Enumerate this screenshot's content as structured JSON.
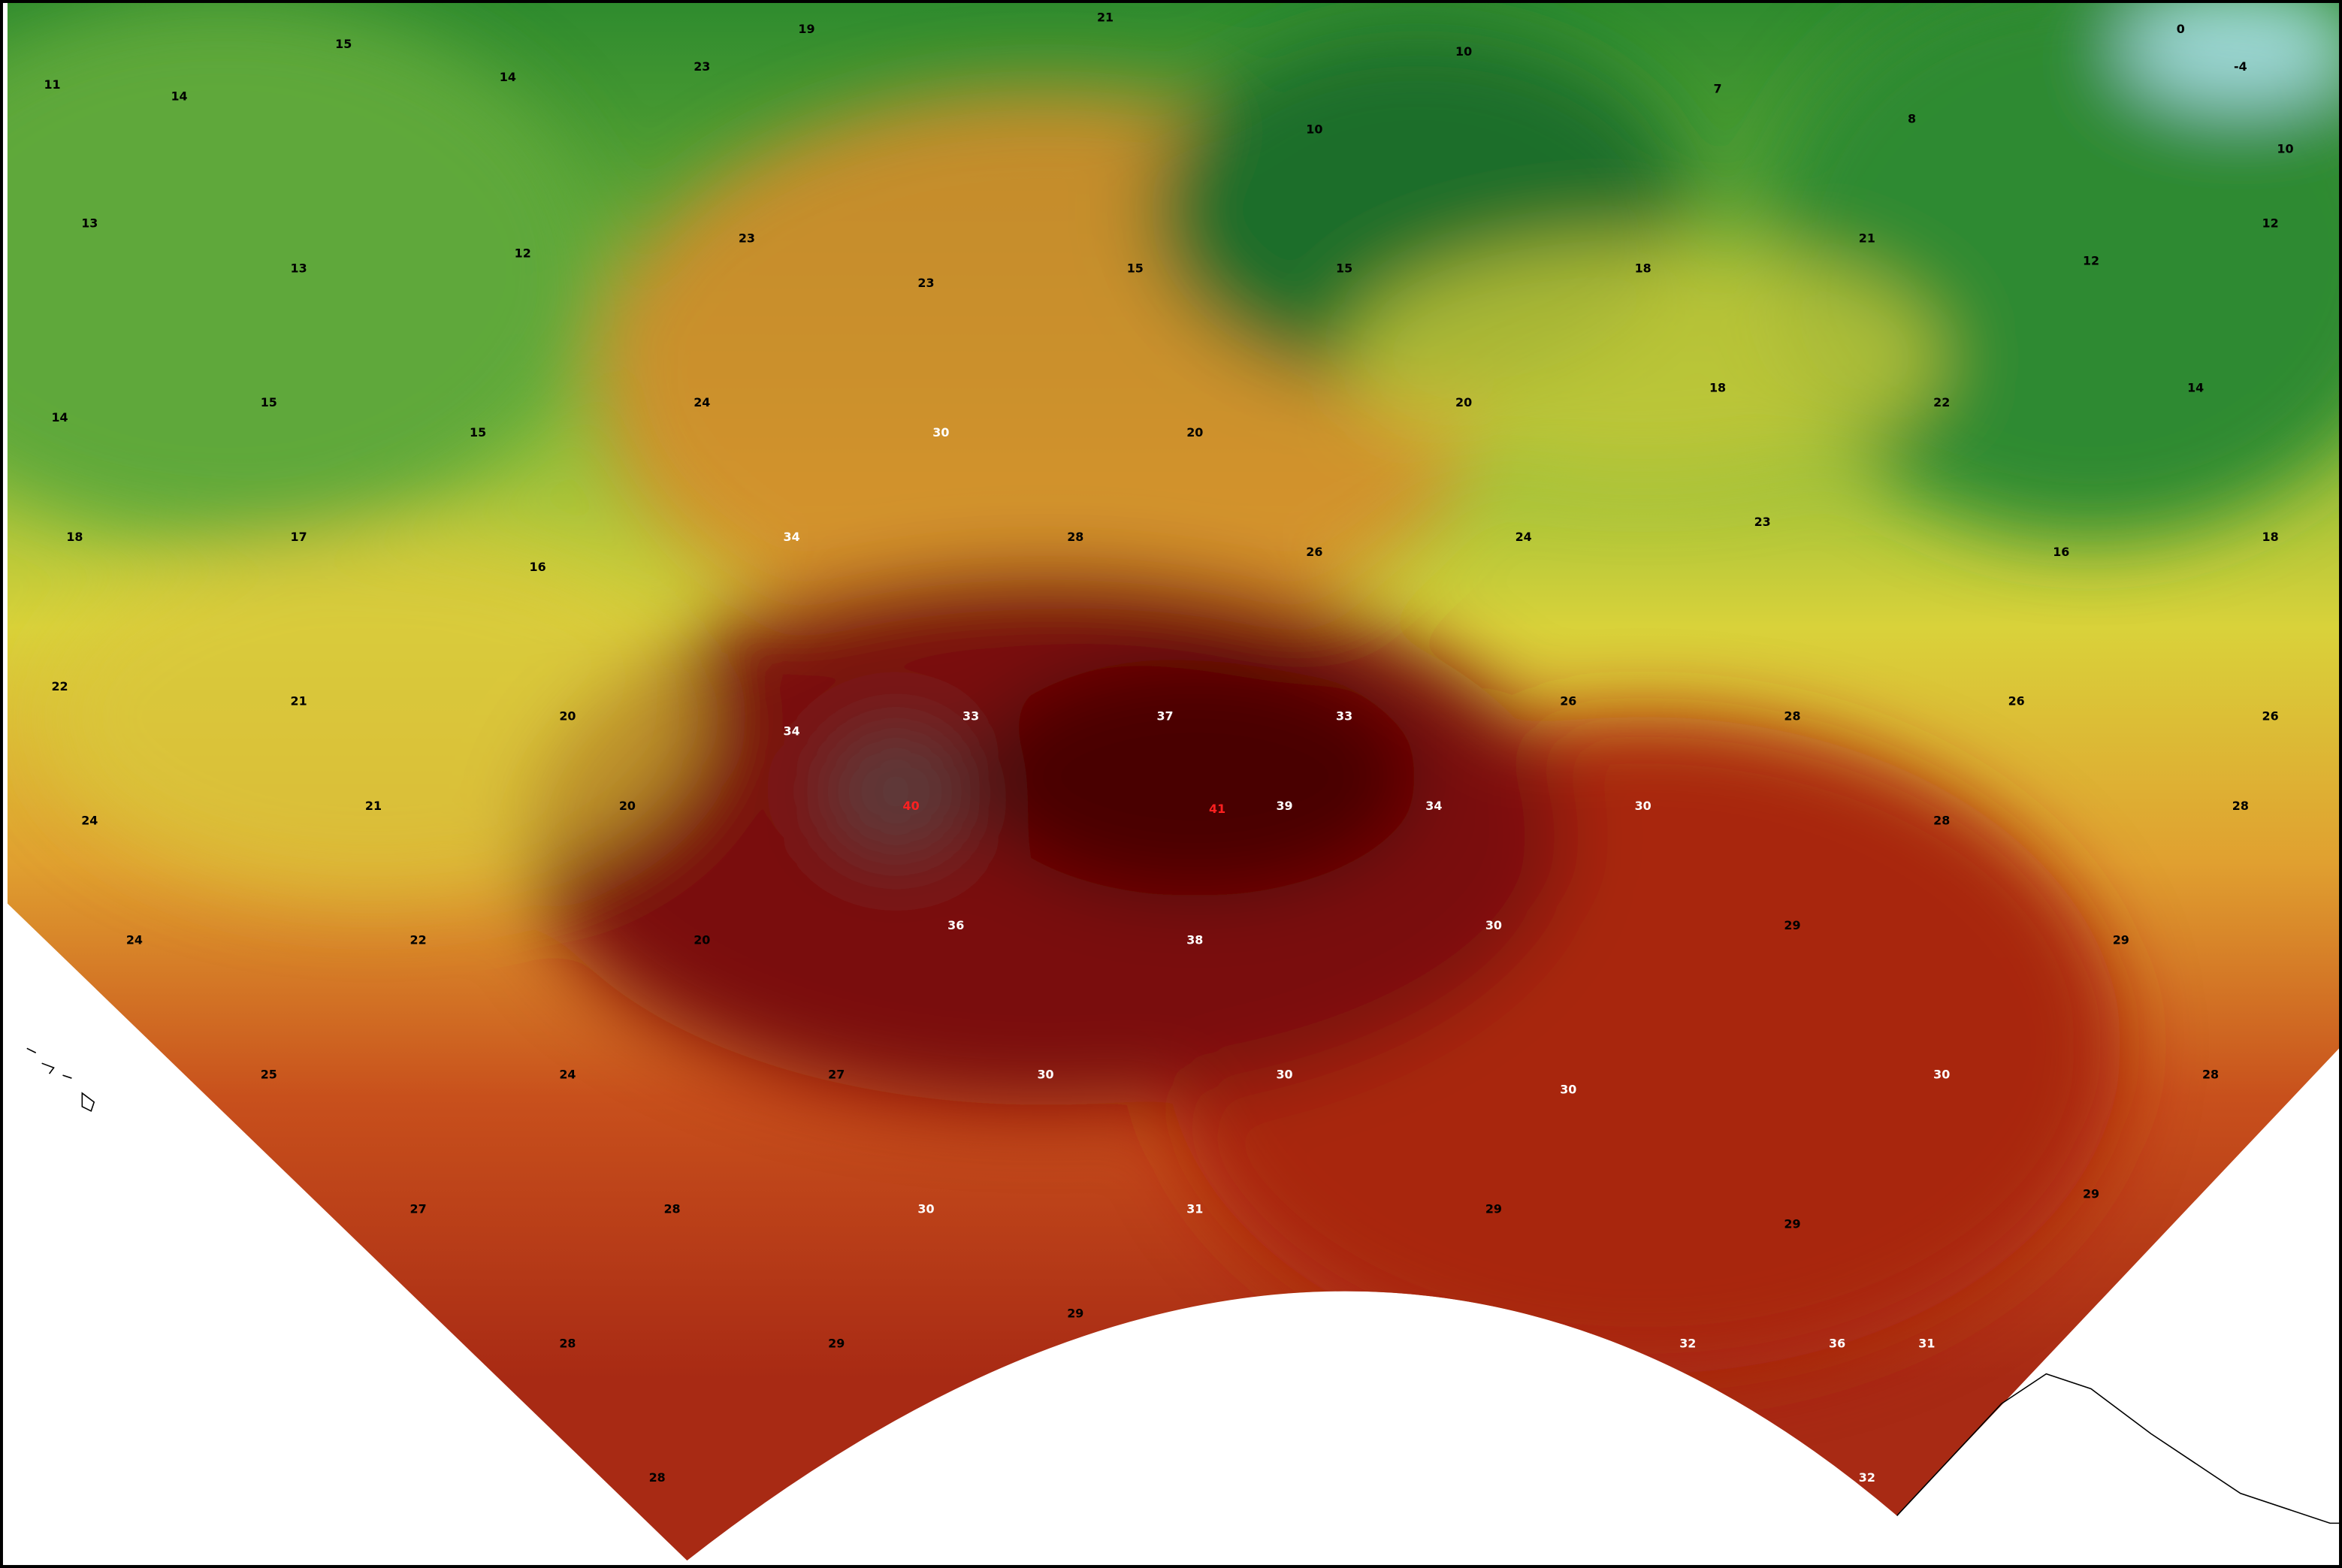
{
  "map": {
    "labels": [
      11,
      14,
      15,
      14,
      23,
      19,
      21,
      10,
      10,
      7,
      8,
      0,
      -4,
      10,
      13,
      13,
      12,
      23,
      23,
      15,
      15,
      18,
      21,
      12,
      12,
      14,
      15,
      15,
      24,
      30,
      20,
      20,
      18,
      22,
      14,
      18,
      17,
      16,
      34,
      28,
      26,
      24,
      23,
      16,
      18,
      22,
      21,
      20,
      34,
      33,
      37,
      33,
      26,
      28,
      26,
      26,
      24,
      21,
      20,
      40,
      41,
      39,
      34,
      30,
      28,
      28,
      24,
      22,
      20,
      36,
      38,
      30,
      29,
      29,
      25,
      24,
      27,
      30,
      30,
      30,
      30,
      28,
      27,
      28,
      30,
      31,
      29,
      29,
      29,
      28,
      29,
      29,
      32,
      31,
      28,
      32,
      36
    ]
  }
}
